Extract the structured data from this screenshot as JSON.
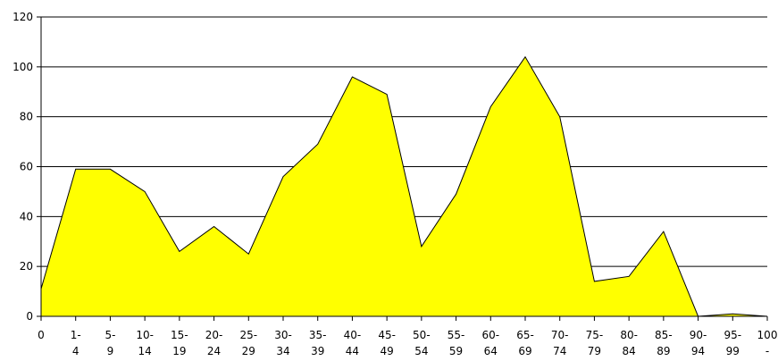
{
  "chart_data": {
    "type": "area",
    "categories": [
      "0",
      "1-4",
      "5-9",
      "10-14",
      "15-19",
      "20-24",
      "25-29",
      "30-34",
      "35-39",
      "40-44",
      "45-49",
      "50-54",
      "55-59",
      "60-64",
      "65-69",
      "70-74",
      "75-79",
      "80-84",
      "85-89",
      "90-94",
      "95-99",
      "100-"
    ],
    "values": [
      11,
      59,
      59,
      50,
      26,
      36,
      25,
      56,
      69,
      96,
      89,
      28,
      49,
      84,
      104,
      80,
      14,
      16,
      34,
      0,
      1,
      0
    ],
    "title": "",
    "xlabel": "",
    "ylabel": "",
    "ylim": [
      0,
      120
    ],
    "yticks": [
      0,
      20,
      40,
      60,
      80,
      100,
      120
    ],
    "grid": true,
    "fill_color": "#ffff00",
    "line_color": "#000000"
  }
}
